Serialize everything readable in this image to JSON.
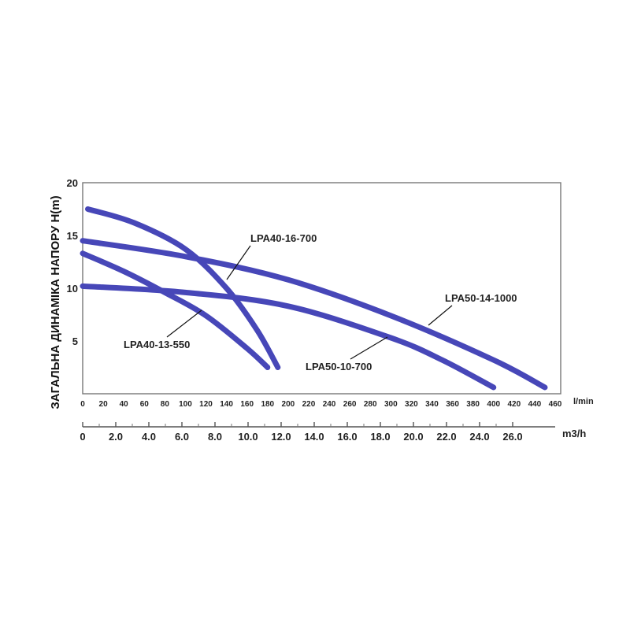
{
  "chart_data": {
    "type": "line",
    "title": "",
    "ylabel": "ЗАГАЛЬНА ДИНАМІКА НАПОРУ H(m)",
    "xlabel_primary_unit": "l/min",
    "xlabel_secondary_unit": "m3/h",
    "xlim": [
      0,
      460
    ],
    "ylim": [
      0,
      20
    ],
    "x_ticks": [
      "0",
      "20",
      "40",
      "60",
      "80",
      "100",
      "120",
      "140",
      "160",
      "180",
      "200",
      "220",
      "240",
      "260",
      "280",
      "300",
      "320",
      "340",
      "360",
      "380",
      "400",
      "420",
      "440",
      "460"
    ],
    "y_ticks": [
      "5",
      "10",
      "15",
      "20"
    ],
    "secondary_x_ticks": [
      "0",
      "2.0",
      "4.0",
      "6.0",
      "8.0",
      "10.0",
      "12.0",
      "14.0",
      "16.0",
      "18.0",
      "20.0",
      "22.0",
      "24.0",
      "26.0"
    ],
    "grid": false,
    "line_color": "#4747b8",
    "series": [
      {
        "name": "LPA40-16-700",
        "x": [
          5,
          50,
          100,
          140,
          170,
          190
        ],
        "y": [
          17.5,
          16.2,
          13.7,
          10.0,
          6.0,
          2.5
        ]
      },
      {
        "name": "LPA40-13-550",
        "x": [
          0,
          40,
          80,
          120,
          160,
          180
        ],
        "y": [
          13.3,
          11.6,
          9.6,
          7.4,
          4.3,
          2.5
        ]
      },
      {
        "name": "LPA50-14-1000",
        "x": [
          0,
          100,
          200,
          300,
          400,
          450
        ],
        "y": [
          14.5,
          13.0,
          10.8,
          7.4,
          3.2,
          0.6
        ]
      },
      {
        "name": "LPA50-10-700",
        "x": [
          0,
          100,
          200,
          300,
          350,
          400
        ],
        "y": [
          10.2,
          9.6,
          8.3,
          5.3,
          3.2,
          0.6
        ]
      }
    ],
    "annotations": [
      {
        "series": "LPA40-16-700",
        "text": "LPA40-16-700"
      },
      {
        "series": "LPA40-13-550",
        "text": "LPA40-13-550"
      },
      {
        "series": "LPA50-14-1000",
        "text": "LPA50-14-1000"
      },
      {
        "series": "LPA50-10-700",
        "text": "LPA50-10-700"
      }
    ]
  }
}
